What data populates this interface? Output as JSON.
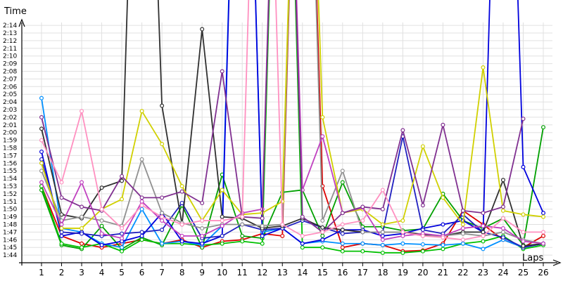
{
  "chart_data": {
    "type": "line",
    "title": "",
    "ylabel": "Time",
    "xlabel": "Laps",
    "x": [
      1,
      2,
      3,
      4,
      5,
      6,
      7,
      8,
      9,
      10,
      11,
      12,
      13,
      14,
      15,
      16,
      17,
      18,
      19,
      20,
      21,
      22,
      23,
      24,
      25,
      26
    ],
    "y_ticks": [
      "1:44",
      "1:45",
      "1:46",
      "1:47",
      "1:48",
      "1:49",
      "1:50",
      "1:51",
      "1:52",
      "1:53",
      "1:54",
      "1:55",
      "1:56",
      "1:57",
      "1:58",
      "1:59",
      "2:00",
      "2:01",
      "2:02",
      "2:03",
      "2:04",
      "2:05",
      "2:06",
      "2:07",
      "2:08",
      "2:09",
      "2:10",
      "2:11",
      "2:12",
      "2:13",
      "2:14"
    ],
    "ylim_seconds": [
      103,
      135
    ],
    "grid": true,
    "series": [
      {
        "color": "#dd0000",
        "values": [
          113.0,
          106.5,
          105.5,
          105.0,
          105.5,
          106.0,
          105.5,
          106.0,
          105.0,
          105.8,
          106.0,
          106.8,
          106.5,
          198,
          113.0,
          105.0,
          105.5,
          105.3,
          104.5,
          104.6,
          105.5,
          109.8,
          108.0,
          106.0,
          105.0,
          106.5
        ]
      },
      {
        "color": "#00a000",
        "values": [
          112.5,
          105.3,
          104.8,
          107.8,
          104.8,
          106.3,
          105.3,
          110.5,
          105.0,
          114.5,
          106.5,
          106.2,
          112.2,
          112.5,
          106.5,
          113.5,
          107.7,
          107.7,
          107.2,
          107.4,
          112.0,
          108.5,
          107.5,
          108.8,
          105.3,
          120.7
        ]
      },
      {
        "color": "#00c000",
        "values": [
          113.0,
          105.5,
          105.0,
          105.5,
          104.5,
          106.0,
          105.5,
          105.5,
          105.3,
          105.5,
          105.8,
          105.5,
          198,
          105.0,
          105.0,
          104.5,
          104.5,
          104.3,
          104.3,
          104.5,
          104.8,
          105.5,
          105.8,
          106.5,
          104.8,
          105.3
        ]
      },
      {
        "color": "#0090ff",
        "values": [
          124.5,
          107.5,
          107.0,
          105.5,
          105.0,
          110.0,
          105.5,
          105.8,
          105.3,
          107.8,
          198,
          107.0,
          107.5,
          105.5,
          105.8,
          105.5,
          105.5,
          105.3,
          105.5,
          105.4,
          105.3,
          105.5,
          104.8,
          106.0,
          105.0,
          105.5
        ]
      },
      {
        "color": "#0000dd",
        "values": [
          117.5,
          106.5,
          107.0,
          105.3,
          105.8,
          106.5,
          109.5,
          105.8,
          105.5,
          106.5,
          198,
          106.5,
          107.5,
          105.5,
          106.0,
          107.3,
          107.3,
          106.5,
          106.8,
          107.5,
          108.0,
          108.5,
          107.0,
          198,
          115.5,
          109.5
        ]
      },
      {
        "color": "#2020c0",
        "values": [
          116.5,
          107.0,
          106.8,
          106.5,
          106.8,
          107.0,
          107.3,
          110.8,
          106.2,
          106.5,
          108.0,
          107.3,
          107.5,
          108.5,
          107.6,
          106.8,
          107.0,
          107.0,
          119.5,
          107.3,
          106.8,
          109.3,
          107.0,
          106.3,
          105.0,
          105.5
        ]
      },
      {
        "color": "#303030",
        "values": [
          120.5,
          109.3,
          108.8,
          112.8,
          113.7,
          198,
          123.5,
          108.0,
          133.5,
          109.0,
          108.8,
          107.5,
          107.8,
          108.8,
          107.6,
          107.3,
          107.0,
          107.0,
          107.0,
          106.7,
          106.5,
          107.0,
          107.0,
          113.8,
          105.2,
          105.5
        ]
      },
      {
        "color": "#909090",
        "values": [
          115.0,
          108.5,
          109.0,
          108.5,
          107.8,
          116.5,
          109.5,
          108.2,
          107.5,
          108.0,
          108.0,
          107.8,
          108.0,
          198,
          108.5,
          115.0,
          107.0,
          107.0,
          107.0,
          106.5,
          106.5,
          106.8,
          106.5,
          107.0,
          106.0,
          105.5
        ]
      },
      {
        "color": "#d0d000",
        "values": [
          116.0,
          107.5,
          107.5,
          110.0,
          111.3,
          122.8,
          118.5,
          113.0,
          108.5,
          112.5,
          109.3,
          109.5,
          111.0,
          198,
          122.0,
          109.5,
          110.0,
          108.0,
          108.5,
          118.2,
          111.5,
          108.0,
          128.5,
          109.8,
          109.3,
          109.0
        ]
      },
      {
        "color": "#c040c0",
        "values": [
          113.5,
          108.0,
          113.5,
          106.8,
          106.2,
          111.0,
          108.5,
          106.5,
          106.5,
          107.8,
          109.5,
          110.0,
          198,
          112.5,
          119.5,
          109.5,
          110.2,
          106.0,
          106.5,
          106.8,
          106.5,
          107.5,
          107.8,
          107.5,
          105.8,
          105.5
        ]
      },
      {
        "color": "#803090",
        "values": [
          122.0,
          111.5,
          110.3,
          109.8,
          114.3,
          111.5,
          111.5,
          112.3,
          110.8,
          128.0,
          109.0,
          108.8,
          198,
          109.0,
          107.0,
          109.5,
          110.3,
          110.0,
          120.3,
          110.5,
          121.0,
          109.8,
          109.5,
          110.3,
          121.8,
          null
        ]
      },
      {
        "color": "#ff90c0",
        "values": [
          119.0,
          113.5,
          122.8,
          110.0,
          107.5,
          110.5,
          109.0,
          108.0,
          108.5,
          108.5,
          109.0,
          198,
          108.0,
          106.5,
          107.0,
          108.0,
          108.5,
          112.5,
          107.0,
          106.5,
          106.3,
          106.0,
          106.5,
          108.8,
          107.0,
          107.0
        ]
      }
    ]
  }
}
